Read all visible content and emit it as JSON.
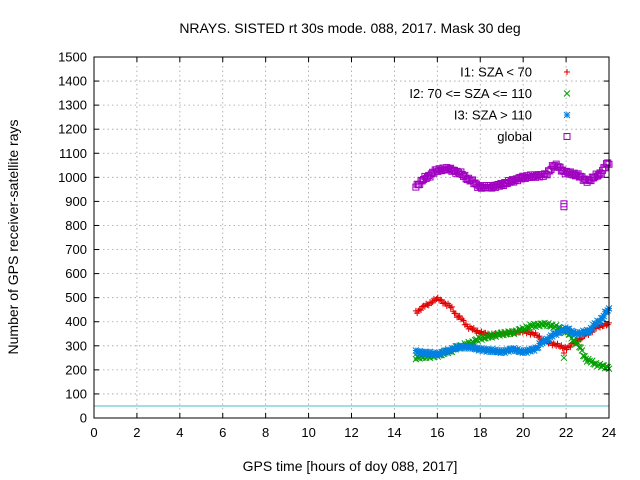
{
  "chart_data": {
    "type": "scatter",
    "title": "NRAYS. SISTED rt 30s mode. 088, 2017. Mask 30 deg",
    "xlabel": "GPS time [hours of doy 088, 2017]",
    "ylabel": "Number of GPS receiver-satellite rays",
    "xlim": [
      0,
      24
    ],
    "ylim": [
      0,
      1500
    ],
    "xticks": [
      "0",
      "2",
      "4",
      "6",
      "8",
      "10",
      "12",
      "14",
      "16",
      "18",
      "20",
      "22",
      "24"
    ],
    "yticks": [
      "0",
      "100",
      "200",
      "300",
      "400",
      "500",
      "600",
      "700",
      "800",
      "900",
      "1000",
      "1100",
      "1200",
      "1300",
      "1400",
      "1500"
    ],
    "grid": true,
    "legend_position": "top-right",
    "threshold_line": {
      "y": 50,
      "color": "#40c0c0"
    },
    "series": [
      {
        "name": "I1: SZA < 70",
        "marker": "+",
        "color": "#e00000",
        "x": [
          15.0,
          15.5,
          16.0,
          16.5,
          17.0,
          17.5,
          18.0,
          18.5,
          19.0,
          19.5,
          20.0,
          20.5,
          21.0,
          21.5,
          22.0,
          22.5,
          23.0,
          23.5,
          24.0
        ],
        "y": [
          440,
          470,
          495,
          470,
          420,
          375,
          355,
          345,
          350,
          355,
          360,
          350,
          320,
          305,
          290,
          320,
          350,
          380,
          390
        ],
        "outliers": [
          [
            21.9,
            270
          ]
        ]
      },
      {
        "name": "I2: 70 <= SZA <= 110",
        "marker": "x",
        "color": "#00a000",
        "x": [
          15.0,
          15.5,
          16.0,
          16.5,
          17.0,
          17.5,
          18.0,
          18.5,
          19.0,
          19.5,
          20.0,
          20.5,
          21.0,
          21.5,
          22.0,
          22.5,
          23.0,
          23.5,
          24.0
        ],
        "y": [
          250,
          255,
          260,
          275,
          295,
          310,
          330,
          340,
          350,
          355,
          370,
          385,
          390,
          380,
          360,
          310,
          240,
          220,
          210
        ],
        "outliers": [
          [
            21.9,
            250
          ]
        ]
      },
      {
        "name": "I3: SZA > 110",
        "marker": "*",
        "color": "#0080e0",
        "x": [
          15.0,
          15.5,
          16.0,
          16.5,
          17.0,
          17.5,
          18.0,
          18.5,
          19.0,
          19.5,
          20.0,
          20.5,
          21.0,
          21.5,
          22.0,
          22.5,
          23.0,
          23.5,
          24.0
        ],
        "y": [
          275,
          270,
          265,
          280,
          295,
          295,
          285,
          280,
          275,
          285,
          275,
          285,
          320,
          350,
          370,
          350,
          360,
          400,
          450
        ],
        "outliers": []
      },
      {
        "name": "global",
        "marker": "square",
        "color": "#a000c0",
        "x": [
          15.0,
          15.5,
          16.0,
          16.5,
          17.0,
          17.5,
          18.0,
          18.5,
          19.0,
          19.5,
          20.0,
          20.5,
          21.0,
          21.5,
          22.0,
          22.5,
          23.0,
          23.5,
          24.0
        ],
        "y": [
          965,
          1000,
          1030,
          1035,
          1020,
          990,
          960,
          960,
          970,
          985,
          1000,
          1005,
          1010,
          1050,
          1020,
          1010,
          985,
          1010,
          1060
        ],
        "outliers": [
          [
            21.9,
            890
          ],
          [
            21.9,
            878
          ]
        ]
      }
    ]
  }
}
